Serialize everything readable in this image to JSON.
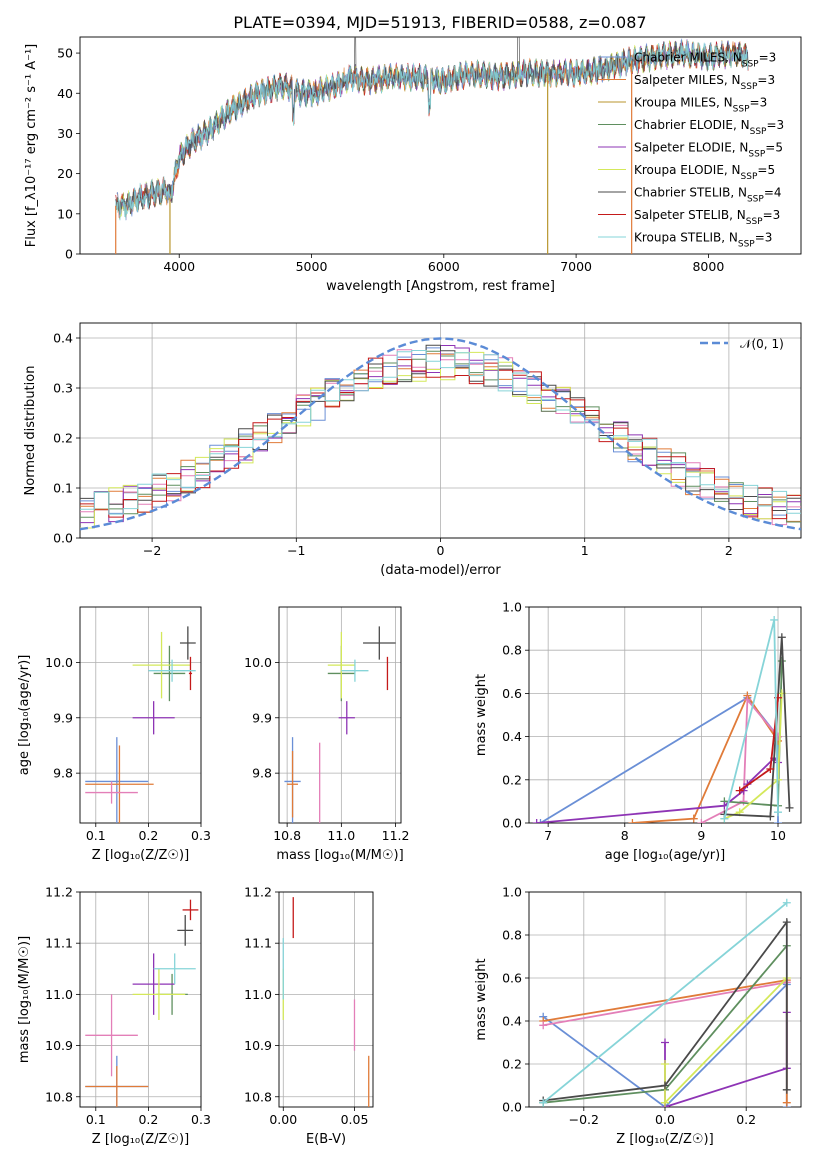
{
  "figure_title": "PLATE=0394, MJD=51913, FIBERID=0588, z=0.087",
  "colors": {
    "Chabrier MILES": "#6a8fd6",
    "Salpeter MILES": "#e07b39",
    "Kroupa MILES": "#b8962e",
    "Chabrier ELODIE": "#5f8f5f",
    "Salpeter ELODIE": "#8e34b5",
    "Kroupa ELODIE": "#d4e85a",
    "Chabrier STELIB": "#4a4a4a",
    "Salpeter STELIB": "#c41a1a",
    "Kroupa STELIB": "#86d4d8",
    "normal": "#5b8bd6",
    "pink": "#e37fb8"
  },
  "chart_data": [
    {
      "id": "spectrum",
      "type": "line",
      "xlabel": "wavelength [Angstrom, rest frame]",
      "ylabel": "Flux [f_λ10⁻¹⁷ erg cm⁻² s⁻¹ A⁻¹]",
      "xlim": [
        3250,
        8700
      ],
      "ylim": [
        0,
        54
      ],
      "xticks": [
        4000,
        5000,
        6000,
        7000,
        8000
      ],
      "yticks": [
        0,
        10,
        20,
        30,
        40,
        50
      ],
      "legend_position": "top-right",
      "series": [
        {
          "name": "Chabrier MILES, N_SSP=3",
          "key": "Chabrier MILES"
        },
        {
          "name": "Salpeter MILES, N_SSP=3",
          "key": "Salpeter MILES"
        },
        {
          "name": "Kroupa MILES, N_SSP=3",
          "key": "Kroupa MILES"
        },
        {
          "name": "Chabrier ELODIE, N_SSP=3",
          "key": "Chabrier ELODIE"
        },
        {
          "name": "Salpeter ELODIE, N_SSP=5",
          "key": "Salpeter ELODIE"
        },
        {
          "name": "Kroupa ELODIE, N_SSP=5",
          "key": "Kroupa ELODIE"
        },
        {
          "name": "Chabrier STELIB, N_SSP=4",
          "key": "Chabrier STELIB"
        },
        {
          "name": "Salpeter STELIB, N_SSP=3",
          "key": "Salpeter STELIB"
        },
        {
          "name": "Kroupa STELIB, N_SSP=3",
          "key": "Kroupa STELIB"
        }
      ],
      "continuum": {
        "x": [
          3520,
          3600,
          3700,
          3800,
          3900,
          3930,
          4000,
          4100,
          4200,
          4300,
          4400,
          4500,
          4600,
          4700,
          4800,
          4900,
          5000,
          5100,
          5200,
          5300,
          5400,
          5600,
          5800,
          6000,
          6200,
          6400,
          6600,
          6800,
          7000,
          7200,
          7400,
          7600,
          7800,
          8000,
          8200,
          8300
        ],
        "y": [
          12,
          12,
          14,
          15,
          16,
          14,
          24,
          28,
          30,
          33,
          36,
          38,
          40,
          41,
          42,
          40,
          40,
          41,
          42,
          44,
          43,
          44,
          44,
          43,
          45,
          44,
          45,
          45,
          45,
          46,
          48,
          49,
          50,
          49,
          50,
          49
        ]
      },
      "edge_drops_x": [
        3520,
        3930,
        6785,
        7420
      ]
    },
    {
      "id": "residuals",
      "type": "histogram",
      "xlabel": "(data-model)/error",
      "ylabel": "Normed distribution",
      "xlim": [
        -2.5,
        2.5
      ],
      "ylim": [
        0,
        0.43
      ],
      "xticks": [
        -2,
        -1,
        0,
        1,
        2
      ],
      "yticks": [
        0.0,
        0.1,
        0.2,
        0.3,
        0.4
      ],
      "bin_width": 0.1,
      "reference_curve": {
        "name": "𝒩(0, 1)",
        "style": "dashed",
        "mean": 0,
        "sigma": 1
      },
      "legend_position": "top-right"
    },
    {
      "id": "age_vs_Z",
      "type": "scatter",
      "xlabel": "Z [log₁₀(Z/Z☉)]",
      "ylabel": "age  [log₁₀(age/yr)]",
      "xlim": [
        0.07,
        0.3
      ],
      "ylim": [
        9.71,
        10.1
      ],
      "xticks": [
        0.1,
        0.2,
        0.3
      ],
      "yticks": [
        9.8,
        9.9,
        10.0
      ],
      "points": [
        {
          "key": "Chabrier MILES",
          "x": 0.14,
          "y": 9.785,
          "xerr": 0.06,
          "yerr": 0.08
        },
        {
          "key": "Salpeter MILES",
          "x": 0.145,
          "y": 9.78,
          "xerr": 0.065,
          "yerr": 0.07
        },
        {
          "key": "pink",
          "x": 0.13,
          "y": 9.765,
          "xerr": 0.05,
          "yerr": 0.02
        },
        {
          "key": "Chabrier ELODIE",
          "x": 0.24,
          "y": 9.98,
          "xerr": 0.03,
          "yerr": 0.05
        },
        {
          "key": "Salpeter ELODIE",
          "x": 0.21,
          "y": 9.9,
          "xerr": 0.04,
          "yerr": 0.03
        },
        {
          "key": "Kroupa ELODIE",
          "x": 0.225,
          "y": 9.995,
          "xerr": 0.055,
          "yerr": 0.06
        },
        {
          "key": "Chabrier STELIB",
          "x": 0.275,
          "y": 10.035,
          "xerr": 0.015,
          "yerr": 0.03
        },
        {
          "key": "Salpeter STELIB",
          "x": 0.28,
          "y": 9.98,
          "xerr": 0.003,
          "yerr": 0.03
        },
        {
          "key": "Kroupa STELIB",
          "x": 0.245,
          "y": 9.985,
          "xerr": 0.045,
          "yerr": 0.02
        }
      ]
    },
    {
      "id": "age_vs_mass",
      "type": "scatter",
      "xlabel": "mass [log₁₀(M/M☉)]",
      "ylabel": "",
      "xlim": [
        10.77,
        11.22
      ],
      "ylim": [
        9.71,
        10.1
      ],
      "xticks": [
        10.8,
        11.0,
        11.2
      ],
      "yticks": [
        9.8,
        9.9,
        10.0
      ],
      "points": [
        {
          "key": "Chabrier MILES",
          "x": 10.82,
          "y": 9.785,
          "xerr": 0.03,
          "yerr": 0.08
        },
        {
          "key": "Salpeter MILES",
          "x": 10.82,
          "y": 9.78,
          "xerr": 0.02,
          "yerr": 0.06
        },
        {
          "key": "pink",
          "x": 10.92,
          "y": 9.765,
          "xerr": 0.0,
          "yerr": 0.09
        },
        {
          "key": "Chabrier ELODIE",
          "x": 11.0,
          "y": 9.98,
          "xerr": 0.05,
          "yerr": 0.05
        },
        {
          "key": "Salpeter ELODIE",
          "x": 11.02,
          "y": 9.9,
          "xerr": 0.03,
          "yerr": 0.03
        },
        {
          "key": "Kroupa ELODIE",
          "x": 11.0,
          "y": 9.995,
          "xerr": 0.05,
          "yerr": 0.06
        },
        {
          "key": "Chabrier STELIB",
          "x": 11.14,
          "y": 10.035,
          "xerr": 0.06,
          "yerr": 0.03
        },
        {
          "key": "Salpeter STELIB",
          "x": 11.17,
          "y": 9.98,
          "xerr": 0.0,
          "yerr": 0.03
        },
        {
          "key": "Kroupa STELIB",
          "x": 11.05,
          "y": 9.985,
          "xerr": 0.05,
          "yerr": 0.02
        }
      ]
    },
    {
      "id": "massweight_vs_age",
      "type": "line",
      "xlabel": "age  [log₁₀(age/yr)]",
      "ylabel": "mass weight",
      "xlim": [
        6.75,
        10.3
      ],
      "ylim": [
        0,
        1.0
      ],
      "xticks": [
        7,
        8,
        9,
        10
      ],
      "yticks": [
        0.0,
        0.2,
        0.4,
        0.6,
        0.8,
        1.0
      ],
      "series": [
        {
          "key": "Chabrier MILES",
          "x": [
            6.9,
            9.6,
            10.0,
            10.0
          ],
          "y": [
            0.0,
            0.58,
            0.4,
            0.0
          ]
        },
        {
          "key": "Salpeter MILES",
          "x": [
            8.1,
            8.9,
            9.6,
            10.0
          ],
          "y": [
            0.0,
            0.02,
            0.59,
            0.38
          ]
        },
        {
          "key": "pink",
          "x": [
            9.0,
            9.55,
            9.6,
            10.0
          ],
          "y": [
            0.0,
            0.1,
            0.57,
            0.4
          ]
        },
        {
          "key": "Chabrier ELODIE",
          "x": [
            9.3,
            10.0,
            10.05
          ],
          "y": [
            0.1,
            0.08,
            0.75
          ]
        },
        {
          "key": "Salpeter ELODIE",
          "x": [
            6.85,
            9.3,
            9.55,
            9.6,
            9.95,
            10.0
          ],
          "y": [
            0.0,
            0.08,
            0.15,
            0.18,
            0.3,
            0.28
          ]
        },
        {
          "key": "Kroupa ELODIE",
          "x": [
            9.3,
            9.5,
            10.0,
            10.05
          ],
          "y": [
            0.02,
            0.05,
            0.2,
            0.6
          ]
        },
        {
          "key": "Chabrier STELIB",
          "x": [
            9.3,
            9.9,
            10.05,
            10.15
          ],
          "y": [
            0.04,
            0.03,
            0.86,
            0.07
          ]
        },
        {
          "key": "Salpeter STELIB",
          "x": [
            9.5,
            9.9,
            10.0
          ],
          "y": [
            0.15,
            0.25,
            0.58
          ]
        },
        {
          "key": "Kroupa STELIB",
          "x": [
            9.3,
            9.95,
            10.0
          ],
          "y": [
            0.02,
            0.94,
            0.05
          ]
        }
      ]
    },
    {
      "id": "mass_vs_Z",
      "type": "scatter",
      "xlabel": "Z [log₁₀(Z/Z☉)]",
      "ylabel": "mass [log₁₀(M/M☉)]",
      "xlim": [
        0.07,
        0.3
      ],
      "ylim": [
        10.78,
        11.2
      ],
      "xticks": [
        0.1,
        0.2,
        0.3
      ],
      "yticks": [
        10.8,
        10.9,
        11.0,
        11.1,
        11.2
      ],
      "points": [
        {
          "key": "Chabrier MILES",
          "x": 0.14,
          "y": 10.82,
          "xerr": 0.06,
          "yerr": 0.06
        },
        {
          "key": "Salpeter MILES",
          "x": 0.14,
          "y": 10.82,
          "xerr": 0.06,
          "yerr": 0.04
        },
        {
          "key": "pink",
          "x": 0.13,
          "y": 10.92,
          "xerr": 0.05,
          "yerr": 0.08
        },
        {
          "key": "Chabrier ELODIE",
          "x": 0.245,
          "y": 11.0,
          "xerr": 0.03,
          "yerr": 0.04
        },
        {
          "key": "Salpeter ELODIE",
          "x": 0.21,
          "y": 11.02,
          "xerr": 0.04,
          "yerr": 0.06
        },
        {
          "key": "Kroupa ELODIE",
          "x": 0.22,
          "y": 11.0,
          "xerr": 0.05,
          "yerr": 0.05
        },
        {
          "key": "Chabrier STELIB",
          "x": 0.27,
          "y": 11.125,
          "xerr": 0.015,
          "yerr": 0.03
        },
        {
          "key": "Salpeter STELIB",
          "x": 0.28,
          "y": 11.165,
          "xerr": 0.015,
          "yerr": 0.02
        },
        {
          "key": "Kroupa STELIB",
          "x": 0.25,
          "y": 11.05,
          "xerr": 0.04,
          "yerr": 0.03
        }
      ]
    },
    {
      "id": "mass_vs_ebv",
      "type": "scatter",
      "xlabel": "E(B-V)",
      "ylabel": "",
      "xlim": [
        -0.003,
        0.063
      ],
      "ylim": [
        10.78,
        11.2
      ],
      "xticks": [
        0.0,
        0.05
      ],
      "xticklabels": [
        "0.00",
        "0.05"
      ],
      "yticks": [
        10.8,
        10.9,
        11.0,
        11.1,
        11.2
      ],
      "points": [
        {
          "key": "Salpeter STELIB",
          "x": 0.007,
          "y": 11.15,
          "xerr": 0,
          "yerr": 0.04
        },
        {
          "key": "Kroupa ELODIE",
          "x": 0.0,
          "y": 11.0,
          "xerr": 0,
          "yerr": 0.05
        },
        {
          "key": "Kroupa STELIB",
          "x": 0.0,
          "y": 11.05,
          "xerr": 0,
          "yerr": 0.06
        },
        {
          "key": "pink",
          "x": 0.05,
          "y": 10.94,
          "xerr": 0,
          "yerr": 0.05
        },
        {
          "key": "Salpeter MILES",
          "x": 0.06,
          "y": 10.83,
          "xerr": 0,
          "yerr": 0.05
        }
      ]
    },
    {
      "id": "massweight_vs_Z",
      "type": "line",
      "xlabel": "Z [log₁₀(Z/Z☉)]",
      "ylabel": "mass weight",
      "xlim": [
        -0.335,
        0.335
      ],
      "ylim": [
        0,
        1.0
      ],
      "xticks": [
        -0.2,
        0.0,
        0.2
      ],
      "yticks": [
        0.0,
        0.2,
        0.4,
        0.6,
        0.8,
        1.0
      ],
      "series": [
        {
          "key": "Chabrier MILES",
          "x": [
            -0.3,
            0.0,
            0.3,
            0.3
          ],
          "y": [
            0.42,
            0.0,
            0.57,
            0.0
          ]
        },
        {
          "key": "Salpeter MILES",
          "x": [
            -0.3,
            0.3,
            0.3
          ],
          "y": [
            0.4,
            0.59,
            0.02
          ]
        },
        {
          "key": "pink",
          "x": [
            -0.3,
            0.3
          ],
          "y": [
            0.38,
            0.58
          ]
        },
        {
          "key": "Chabrier ELODIE",
          "x": [
            -0.3,
            0.0,
            0.3
          ],
          "y": [
            0.02,
            0.08,
            0.75
          ]
        },
        {
          "key": "Salpeter ELODIE",
          "x": [
            0.0,
            0.0,
            0.3,
            0.3
          ],
          "y": [
            0.3,
            0.0,
            0.18,
            0.44
          ]
        },
        {
          "key": "Kroupa ELODIE",
          "x": [
            0.0,
            0.0,
            0.3
          ],
          "y": [
            0.2,
            0.02,
            0.6
          ]
        },
        {
          "key": "Chabrier STELIB",
          "x": [
            -0.3,
            0.0,
            0.3,
            0.3
          ],
          "y": [
            0.03,
            0.1,
            0.86,
            0.08
          ]
        },
        {
          "key": "Kroupa STELIB",
          "x": [
            -0.3,
            0.3
          ],
          "y": [
            0.02,
            0.95
          ]
        }
      ]
    }
  ]
}
